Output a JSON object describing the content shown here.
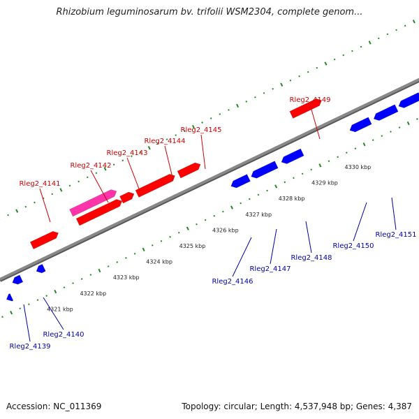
{
  "header": {
    "title": "Rhizobium leguminosarum bv. trifolii WSM2304, complete genom..."
  },
  "footer": {
    "accession": "Accession: NC_011369",
    "summary": "Topology: circular; Length: 4,537,948 bp; Genes: 4,387"
  },
  "colors": {
    "backbone": "#888888",
    "forward_strand": "#ff0000",
    "reverse_strand": "#0000ff",
    "highlight": "#ff33aa",
    "tick": "#228822",
    "forward_label": "#cc0000",
    "reverse_label": "#0000aa"
  },
  "scale": {
    "ticks": [
      "4321 kbp",
      "4322 kbp",
      "4323 kbp",
      "4324 kbp",
      "4325 kbp",
      "4326 kbp",
      "4327 kbp",
      "4328 kbp",
      "4329 kbp",
      "4330 kbp"
    ]
  },
  "genes": {
    "forward": [
      {
        "label": "Rleg2_4141",
        "strand": "+"
      },
      {
        "label": "Rleg2_4142",
        "strand": "+"
      },
      {
        "label": "Rleg2_4143",
        "strand": "+"
      },
      {
        "label": "Rleg2_4144",
        "strand": "+"
      },
      {
        "label": "Rleg2_4145",
        "strand": "+"
      },
      {
        "label": "Rleg2_4149",
        "strand": "+"
      }
    ],
    "reverse": [
      {
        "label": "Rleg2_4139",
        "strand": "-"
      },
      {
        "label": "Rleg2_4140",
        "strand": "-"
      },
      {
        "label": "Rleg2_4146",
        "strand": "-"
      },
      {
        "label": "Rleg2_4147",
        "strand": "-"
      },
      {
        "label": "Rleg2_4148",
        "strand": "-"
      },
      {
        "label": "Rleg2_4150",
        "strand": "-"
      },
      {
        "label": "Rleg2_4151",
        "strand": "-"
      }
    ]
  }
}
